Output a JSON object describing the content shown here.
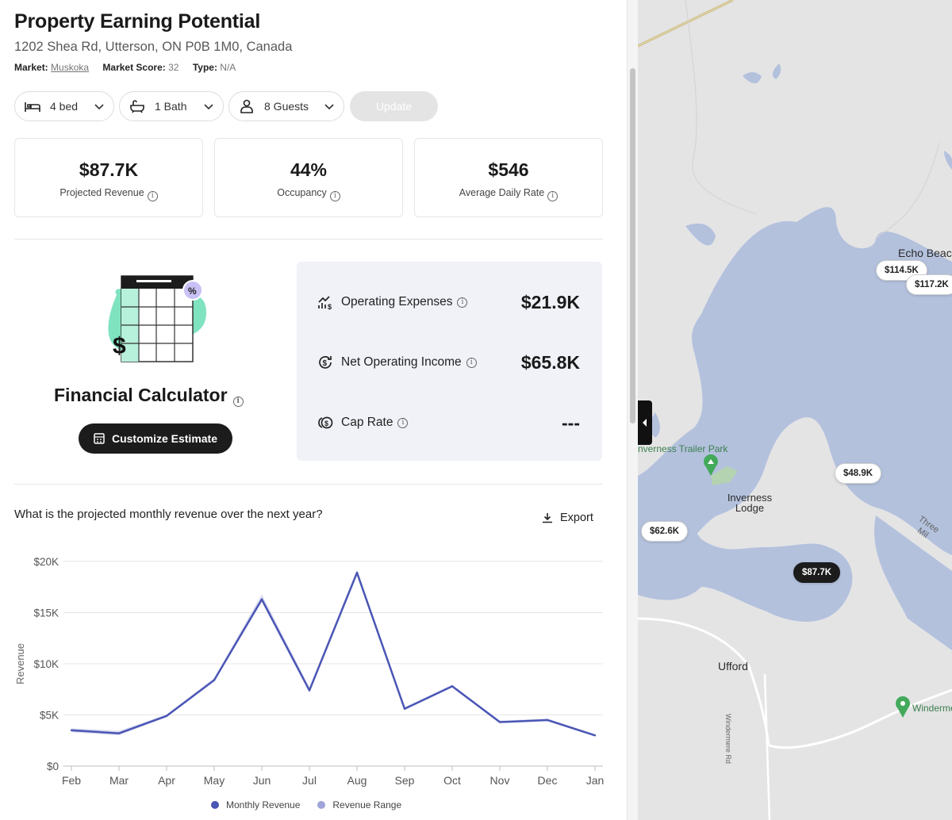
{
  "header": {
    "title": "Property Earning Potential",
    "address": "1202 Shea Rd, Utterson, ON P0B 1M0, Canada",
    "market_label": "Market:",
    "market_value": "Muskoka",
    "score_label": "Market Score:",
    "score_value": "32",
    "type_label": "Type:",
    "type_value": "N/A"
  },
  "filters": {
    "bed": "4 bed",
    "bath": "1 Bath",
    "guests": "8 Guests",
    "update": "Update"
  },
  "stats": [
    {
      "value": "$87.7K",
      "label": "Projected Revenue"
    },
    {
      "value": "44%",
      "label": "Occupancy"
    },
    {
      "value": "$546",
      "label": "Average Daily Rate"
    }
  ],
  "calculator": {
    "title": "Financial Calculator",
    "button": "Customize Estimate"
  },
  "expenses": [
    {
      "label": "Operating Expenses",
      "value": "$21.9K",
      "icon": "chart-up-dollar-icon"
    },
    {
      "label": "Net Operating Income",
      "value": "$65.8K",
      "icon": "dollar-cycle-icon"
    },
    {
      "label": "Cap Rate",
      "value": "---",
      "icon": "coins-icon"
    }
  ],
  "chart_section": {
    "question": "What is the projected monthly revenue over the next year?",
    "export": "Export"
  },
  "chart_data": {
    "type": "line",
    "title": "",
    "xlabel": "",
    "ylabel": "Revenue",
    "categories": [
      "Feb",
      "Mar",
      "Apr",
      "May",
      "Jun",
      "Jul",
      "Aug",
      "Sep",
      "Oct",
      "Nov",
      "Dec",
      "Jan"
    ],
    "y_ticks": [
      "$0",
      "$5K",
      "$10K",
      "$15K",
      "$20K"
    ],
    "ylim": [
      0,
      20000
    ],
    "grid": true,
    "legend_position": "bottom",
    "series": [
      {
        "name": "Monthly Revenue",
        "color": "#4a56b5",
        "values": [
          3500,
          3200,
          4900,
          8400,
          16300,
          7400,
          18900,
          5600,
          7800,
          4300,
          4500,
          3000
        ]
      },
      {
        "name": "Revenue Range",
        "color": "#9fa4d9",
        "values_low": [
          3300,
          3000,
          4800,
          8300,
          16000,
          7200,
          18700,
          5500,
          7700,
          4200,
          4400,
          2900
        ],
        "values_high": [
          3700,
          3450,
          5050,
          8600,
          16800,
          7700,
          19200,
          5750,
          7950,
          4450,
          4650,
          3100
        ]
      }
    ]
  },
  "map": {
    "labels": [
      "Echo Beac",
      "nverness Trailer Park",
      "Inverness Lodge",
      "Ufford",
      "Windermere Rd",
      "Three Mil",
      "Winderme"
    ],
    "pins": [
      "$114.5K",
      "$117.2K",
      "$48.9K",
      "$62.6K",
      "$87.7K"
    ]
  }
}
